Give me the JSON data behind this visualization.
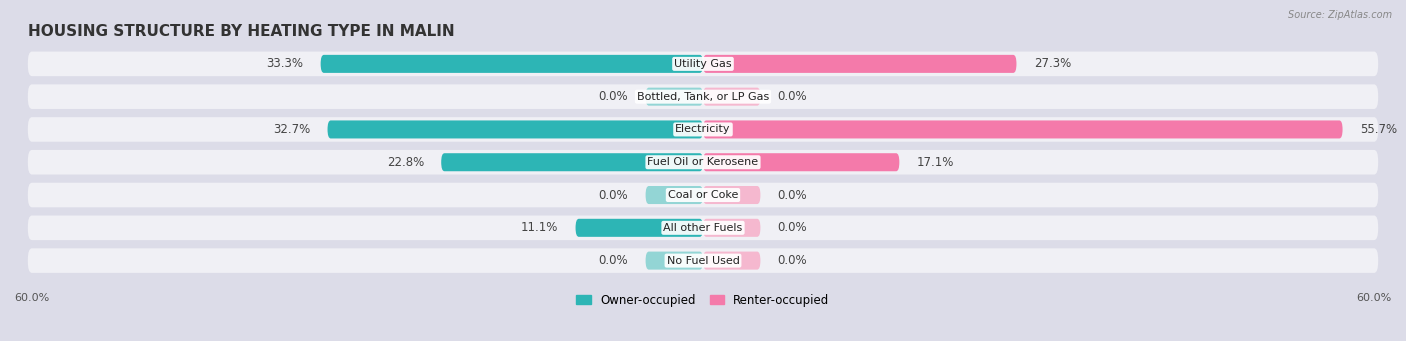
{
  "title": "HOUSING STRUCTURE BY HEATING TYPE IN MALIN",
  "source": "Source: ZipAtlas.com",
  "categories": [
    "Utility Gas",
    "Bottled, Tank, or LP Gas",
    "Electricity",
    "Fuel Oil or Kerosene",
    "Coal or Coke",
    "All other Fuels",
    "No Fuel Used"
  ],
  "owner_values": [
    33.3,
    0.0,
    32.7,
    22.8,
    0.0,
    11.1,
    0.0
  ],
  "renter_values": [
    27.3,
    0.0,
    55.7,
    17.1,
    0.0,
    0.0,
    0.0
  ],
  "owner_color": "#2db5b5",
  "owner_color_light": "#93d5d5",
  "renter_color": "#f47aaa",
  "renter_color_light": "#f5b8cf",
  "bg_color": "#dcdce8",
  "row_bg_color": "#f0f0f5",
  "xlim": 60.0,
  "min_stub": 5.0,
  "legend_labels": [
    "Owner-occupied",
    "Renter-occupied"
  ],
  "axis_label_left": "60.0%",
  "axis_label_right": "60.0%",
  "label_fontsize": 8.5,
  "cat_fontsize": 8.0,
  "title_fontsize": 11
}
